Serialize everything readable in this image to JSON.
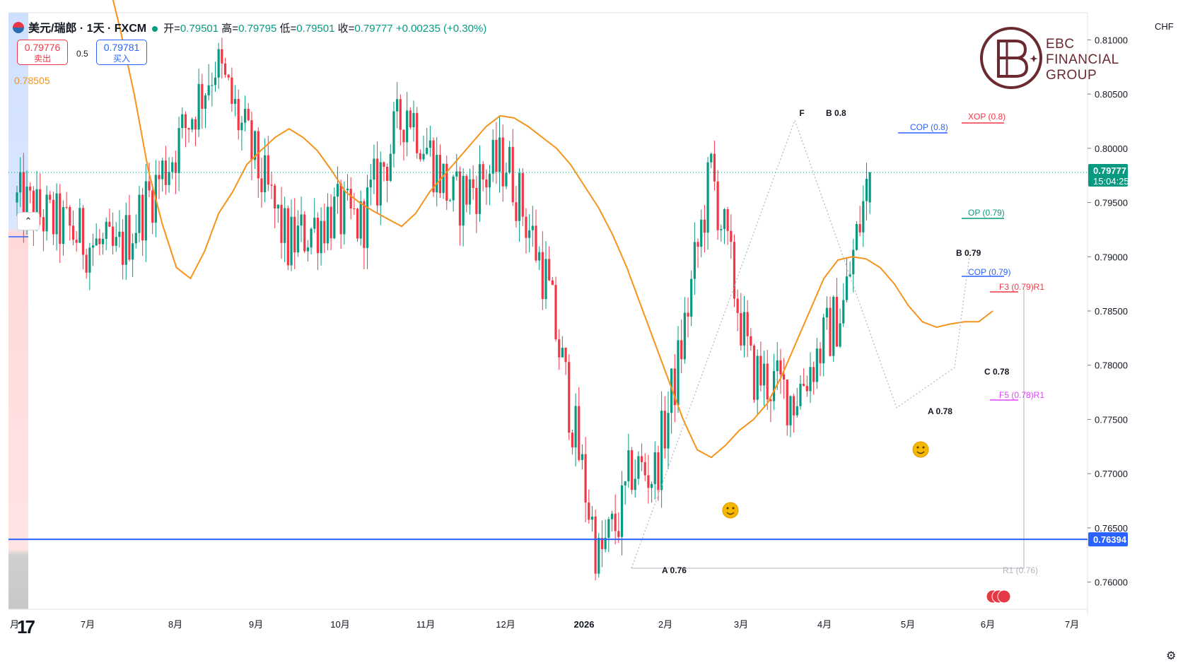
{
  "header": {
    "title": "美元/瑞郎 · 1天 · FXCM",
    "open_label": "开=",
    "open": "0.79501",
    "high_label": "高=",
    "high": "0.79795",
    "low_label": "低=",
    "low": "0.79501",
    "close_label": "收=",
    "close": "0.79777",
    "change": "+0.00235 (+0.30%)"
  },
  "trade": {
    "sell_price": "0.79776",
    "sell_label": "卖出",
    "spread": "0.5",
    "buy_price": "0.79781",
    "buy_label": "买入"
  },
  "ma_value": "0.78505",
  "currency": "CHF",
  "brand": {
    "line1": "EBC",
    "line2": "FINANCIAL",
    "line3": "GROUP"
  },
  "tv_logo": "17",
  "colors": {
    "up": "#089981",
    "down": "#f23645",
    "ma": "#f7931a",
    "hline": "#2962ff",
    "brand": "#6b2a2f"
  },
  "chart_data": {
    "type": "candlestick",
    "symbol": "美元/瑞郎",
    "interval": "1天",
    "ylim": [
      0.7575,
      0.8125
    ],
    "y_ticks": [
      0.76,
      0.765,
      0.77,
      0.775,
      0.78,
      0.785,
      0.79,
      0.795,
      0.8,
      0.805,
      0.81
    ],
    "x_labels": [
      "月",
      "7月",
      "8月",
      "9月",
      "10月",
      "11月",
      "12月",
      "2026",
      "2月",
      "3月",
      "4月",
      "5月",
      "6月",
      "7月"
    ],
    "last_price": "0.79777",
    "countdown": "15:04:25",
    "horizontal_line": "0.76394",
    "ma_path": [
      0.8163,
      0.811,
      0.805,
      0.798,
      0.793,
      0.789,
      0.788,
      0.7905,
      0.794,
      0.796,
      0.7985,
      0.7998,
      0.801,
      0.8018,
      0.801,
      0.7998,
      0.798,
      0.796,
      0.795,
      0.7942,
      0.7935,
      0.7928,
      0.794,
      0.796,
      0.7975,
      0.799,
      0.8005,
      0.802,
      0.803,
      0.8028,
      0.802,
      0.801,
      0.8,
      0.7985,
      0.7965,
      0.7945,
      0.792,
      0.789,
      0.7855,
      0.782,
      0.7785,
      0.775,
      0.7722,
      0.7715,
      0.7726,
      0.774,
      0.775,
      0.7765,
      0.779,
      0.782,
      0.785,
      0.788,
      0.7897,
      0.79,
      0.7898,
      0.789,
      0.7875,
      0.7855,
      0.784,
      0.7835,
      0.7838,
      0.784,
      0.784,
      0.785
    ],
    "annotations": {
      "harmonic_labels": [
        "F",
        "B 0.8",
        "COP (0.8)",
        "XOP (0.8)",
        "OP (0.79)",
        "B 0.79",
        "COP (0.79)",
        "F3 (0.79)R1",
        "C 0.78",
        "F5 (0.78)R1",
        "A 0.78",
        "A 0.76",
        "R1 (0.76)"
      ]
    }
  }
}
